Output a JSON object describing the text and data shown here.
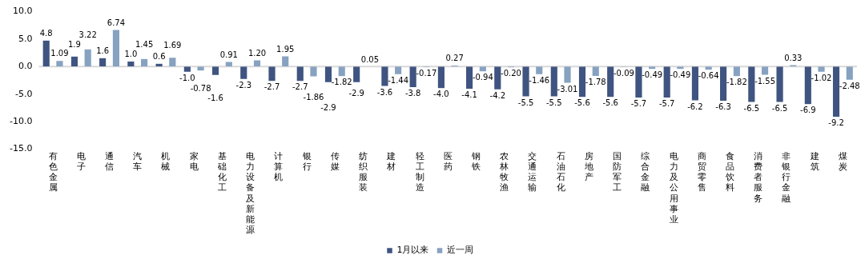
{
  "chart_data": {
    "type": "bar",
    "categories": [
      "有色金属",
      "电子",
      "通信",
      "汽车",
      "机械",
      "家电",
      "基础化工",
      "电力设备及新能源",
      "计算机",
      "银行",
      "传媒",
      "纺织服装",
      "建材",
      "轻工制造",
      "医药",
      "钢铁",
      "农林牧渔",
      "交通运输",
      "石油石化",
      "房地产",
      "国防军工",
      "综合金融",
      "电力及公用事业",
      "商贸零售",
      "食品饮料",
      "消费者服务",
      "非银行金融",
      "建筑",
      "煤炭"
    ],
    "series": [
      {
        "name": "1月以来",
        "color": "#3f5480",
        "values": [
          4.8,
          1.9,
          1.6,
          1.0,
          0.6,
          -1.0,
          -1.6,
          -2.3,
          -2.7,
          -2.7,
          -2.9,
          -2.9,
          -3.6,
          -3.8,
          -4.0,
          -4.1,
          -4.2,
          -5.5,
          -5.5,
          -5.6,
          -5.6,
          -5.7,
          -5.7,
          -6.2,
          -6.3,
          -6.5,
          -6.5,
          -6.9,
          -9.2
        ],
        "value_labels": [
          "4.8",
          "1.9",
          "1.6",
          "1.0",
          "0.6",
          "-1.0",
          "-1.6",
          "-2.3",
          "-2.7",
          "-2.7",
          "-2.9",
          "-2.9",
          "-3.6",
          "-3.8",
          "-4.0",
          "-4.1",
          "-4.2",
          "-5.5",
          "-5.5",
          "-5.6",
          "-5.6",
          "-5.7",
          "-5.7",
          "-6.2",
          "-6.3",
          "-6.5",
          "-6.5",
          "-6.9",
          "-9.2"
        ]
      },
      {
        "name": "近一周",
        "color": "#87a2c0",
        "values": [
          1.09,
          3.22,
          6.74,
          1.45,
          1.69,
          -0.78,
          0.91,
          1.2,
          1.95,
          -1.86,
          -1.82,
          0.05,
          -1.44,
          -0.17,
          0.27,
          -0.94,
          -0.2,
          -1.46,
          -3.01,
          -1.78,
          -0.09,
          -0.49,
          -0.49,
          -0.64,
          -1.82,
          -1.55,
          0.33,
          -1.02,
          -2.48
        ],
        "value_labels": [
          "1.09",
          "3.22",
          "6.74",
          "1.45",
          "1.69",
          "-0.78",
          "0.91",
          "1.20",
          "1.95",
          "-1.86",
          "-1.82",
          "0.05",
          "-1.44",
          "-0.17",
          "0.27",
          "-0.94",
          "-0.20",
          "-1.46",
          "-3.01",
          "-1.78",
          "-0.09",
          "-0.49",
          "-0.49",
          "-0.64",
          "-1.82",
          "-1.55",
          "0.33",
          "-1.02",
          "-2.48"
        ]
      }
    ],
    "ylim": [
      -15,
      10
    ],
    "yticks": [
      {
        "value": -15,
        "label": "-15.0"
      },
      {
        "value": -10,
        "label": "-10.0"
      },
      {
        "value": -5,
        "label": "-5.0"
      },
      {
        "value": 0,
        "label": "0.0"
      },
      {
        "value": 5,
        "label": "5.0"
      },
      {
        "value": 10,
        "label": "10.0"
      }
    ],
    "grid": false,
    "ref_lines": [
      {
        "axis": "y",
        "value": 0,
        "color": "#d9d9d9"
      }
    ],
    "legend": "bottom"
  }
}
